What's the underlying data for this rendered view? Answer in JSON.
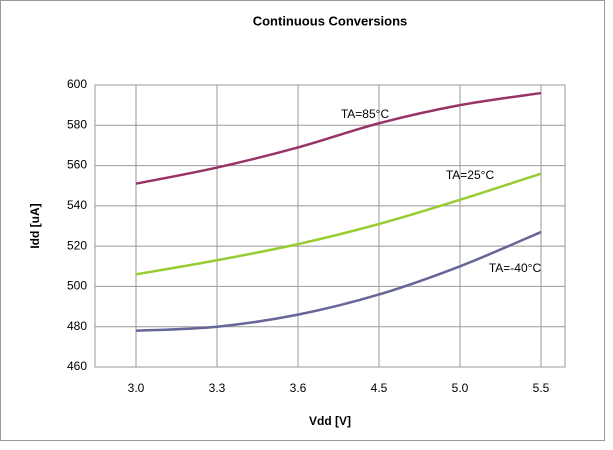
{
  "chart_data": {
    "type": "line",
    "title": "Continuous Conversions",
    "x_label": "Vdd [V]",
    "y_label": "Idd [uA]",
    "categories": [
      "3.0",
      "3.3",
      "3.6",
      "4.5",
      "5.0",
      "5.5"
    ],
    "series": [
      {
        "name": "TA=85°C",
        "color": "#993366",
        "values": [
          551,
          559,
          569,
          581,
          590,
          596
        ]
      },
      {
        "name": "TA=25°C",
        "color": "#99cc33",
        "values": [
          506,
          513,
          521,
          531,
          543,
          556
        ]
      },
      {
        "name": "TA=-40°C",
        "color": "#666699",
        "values": [
          478,
          480,
          486,
          496,
          510,
          527
        ]
      }
    ],
    "ylim": [
      460,
      600
    ],
    "yticks": [
      460,
      480,
      500,
      520,
      540,
      560,
      580,
      600
    ],
    "grid": true
  }
}
